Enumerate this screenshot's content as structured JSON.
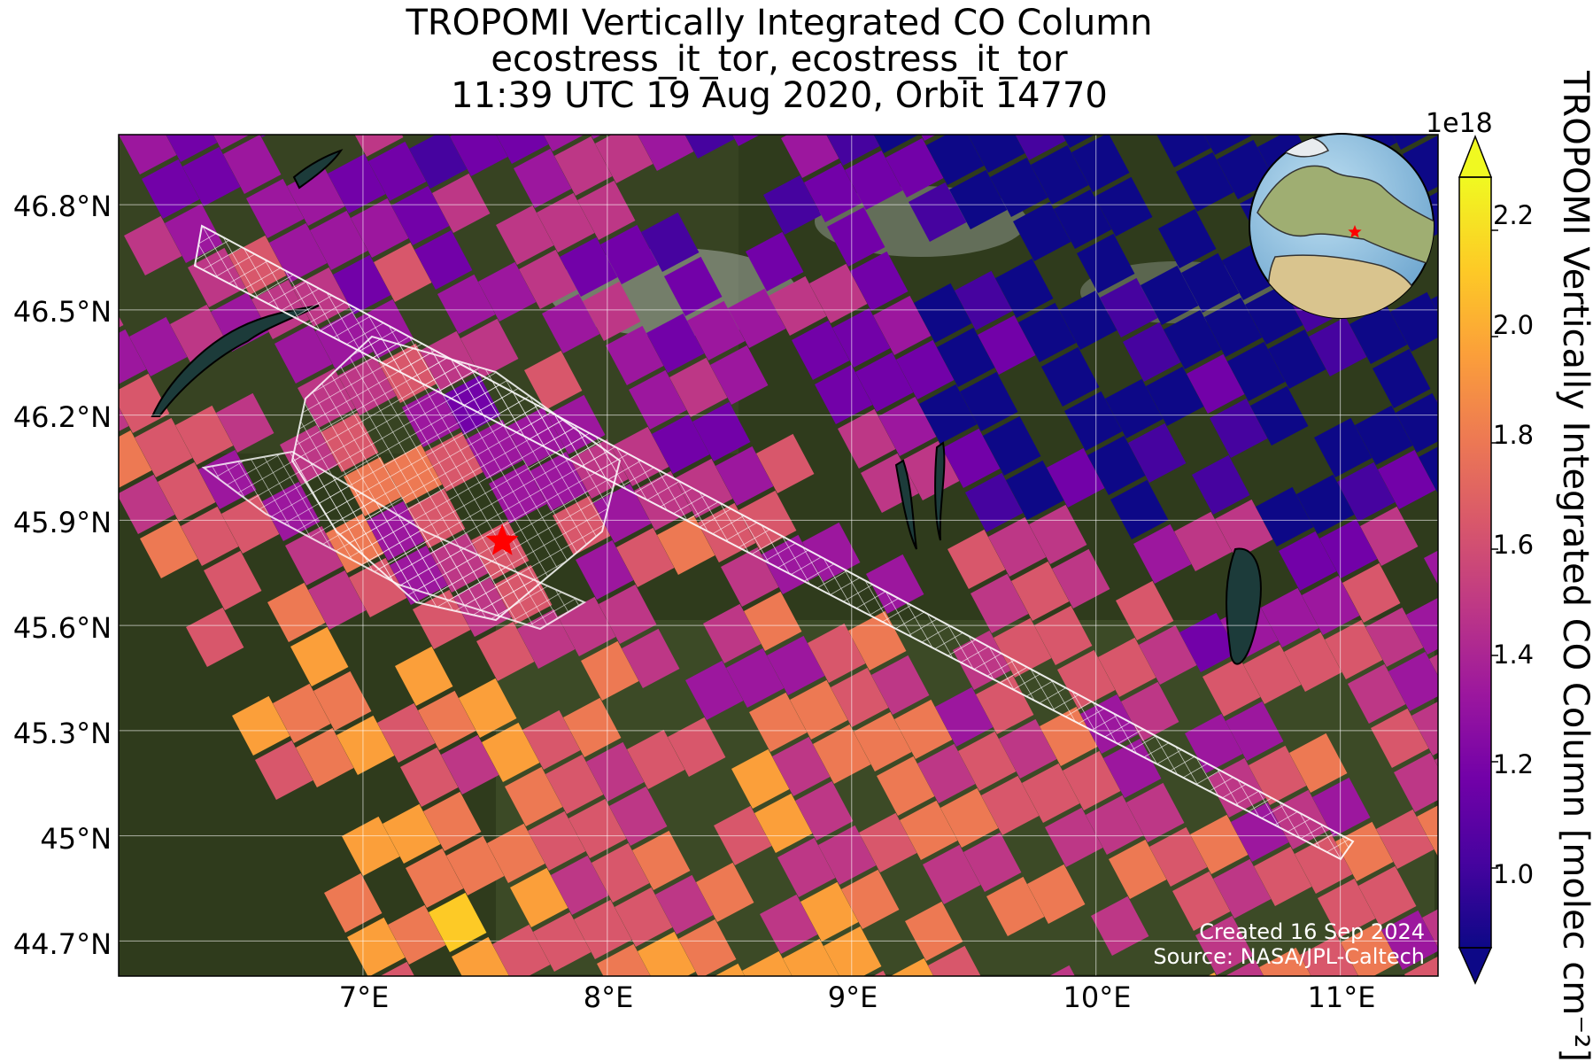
{
  "title": {
    "line1": "TROPOMI Vertically Integrated CO Column",
    "line2": "ecostress_it_tor, ecostress_it_tor",
    "line3": "11:39 UTC 19 Aug 2020, Orbit 14770"
  },
  "map": {
    "lon_range": [
      6.0,
      11.4
    ],
    "lat_range": [
      44.6,
      47.0
    ],
    "lat_ticks": [
      "46.8°N",
      "46.5°N",
      "46.2°N",
      "45.9°N",
      "45.6°N",
      "45.3°N",
      "45°N",
      "44.7°N"
    ],
    "lon_ticks": [
      "7°E",
      "8°E",
      "9°E",
      "10°E",
      "11°E"
    ],
    "marker": {
      "type": "red-star",
      "lon": 7.57,
      "lat": 45.84
    },
    "inset": {
      "name": "globe-inset",
      "marker": "red-star"
    },
    "colormap": "plasma",
    "background": "satellite imagery (Alps, Po Valley)",
    "overlay": "ECOSTRESS swath outline grid (white)"
  },
  "colorbar": {
    "label": "TROPOMI Vertically Integrated CO Column [molec cm⁻²]",
    "exponent": "1e18",
    "ticks": [
      "2.2",
      "2.0",
      "1.8",
      "1.6",
      "1.4",
      "1.2",
      "1.0"
    ],
    "range": [
      0.85,
      2.3
    ],
    "extend": "both"
  },
  "credits": {
    "created": "Created 16 Sep 2024",
    "source": "Source: NASA/JPL-Caltech"
  },
  "colors": {
    "plasma": [
      "#0d0887",
      "#46039f",
      "#7201a8",
      "#9c179e",
      "#bd3786",
      "#d8576b",
      "#ed7953",
      "#fb9f3a",
      "#fdca26",
      "#f0f921"
    ],
    "grid": "#ffffff",
    "marker": "#ff0000",
    "terrain": "#2f3b1c"
  }
}
